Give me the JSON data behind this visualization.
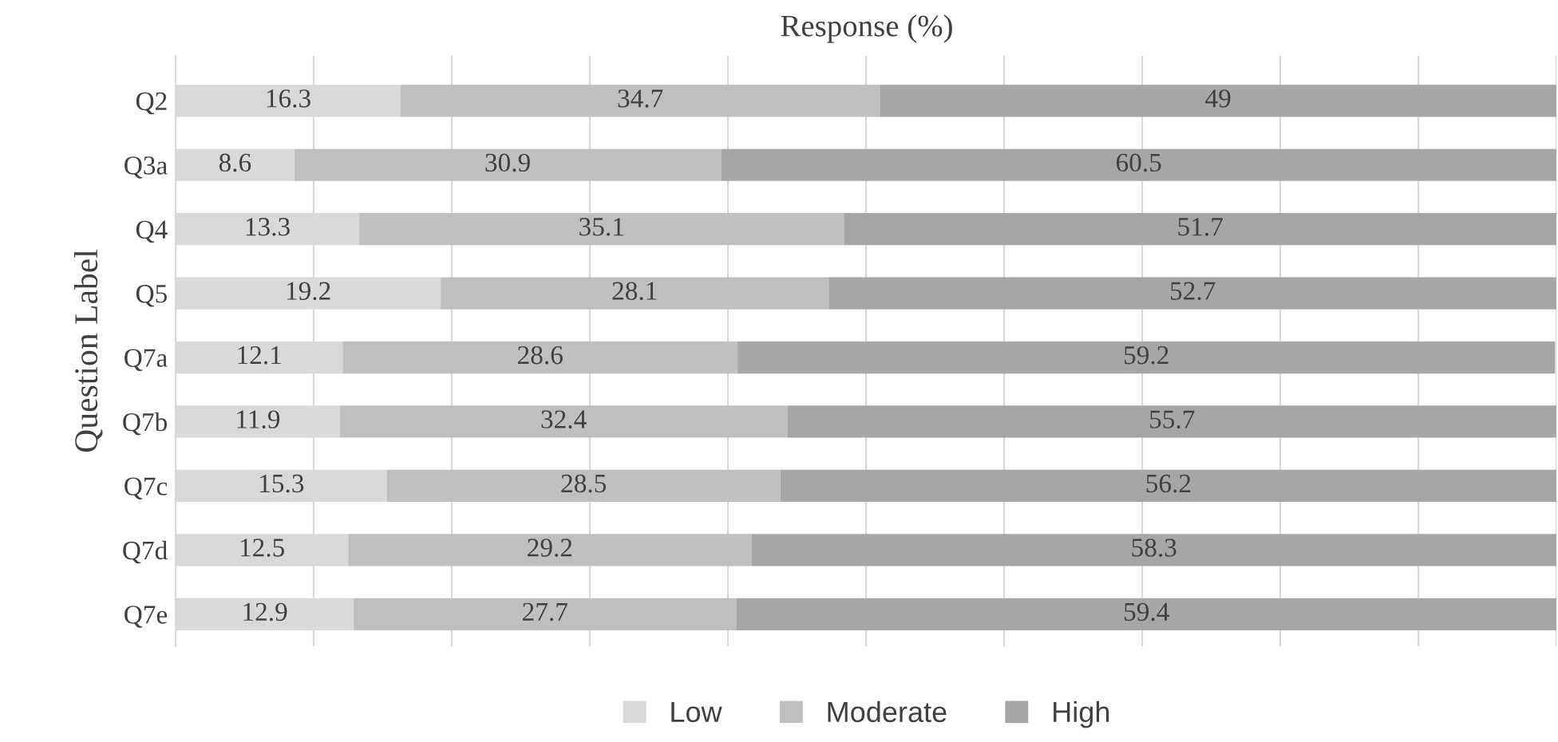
{
  "chart_data": {
    "type": "bar",
    "orientation": "horizontal",
    "stacked": true,
    "title": "Response (%)",
    "ylabel": "Question Label",
    "categories": [
      "Q2",
      "Q3a",
      "Q4",
      "Q5",
      "Q7a",
      "Q7b",
      "Q7c",
      "Q7d",
      "Q7e"
    ],
    "series": [
      {
        "name": "Low",
        "color": "#d9d9d9",
        "values": [
          16.3,
          8.6,
          13.3,
          19.2,
          12.1,
          11.9,
          15.3,
          12.5,
          12.9
        ]
      },
      {
        "name": "Moderate",
        "color": "#bfbfbf",
        "values": [
          34.7,
          30.9,
          35.1,
          28.1,
          28.6,
          32.4,
          28.5,
          29.2,
          27.7
        ]
      },
      {
        "name": "High",
        "color": "#a6a6a6",
        "values": [
          49,
          60.5,
          51.7,
          52.7,
          59.2,
          55.7,
          56.2,
          58.3,
          59.4
        ]
      }
    ],
    "xlim": [
      0,
      100
    ],
    "xticks": [
      {
        "value": 0,
        "label": null
      },
      {
        "value": 10,
        "label": null
      },
      {
        "value": 20,
        "label": null
      },
      {
        "value": 30,
        "label": null
      },
      {
        "value": 40,
        "label": null
      },
      {
        "value": 50,
        "label": null
      },
      {
        "value": 60,
        "label": null
      },
      {
        "value": 70,
        "label": null
      },
      {
        "value": 80,
        "label": null
      },
      {
        "value": 90,
        "label": null
      },
      {
        "value": 100,
        "label": null
      }
    ],
    "tick_labels": "y",
    "grid": "x",
    "legend": "bottom",
    "data_labels": true
  }
}
